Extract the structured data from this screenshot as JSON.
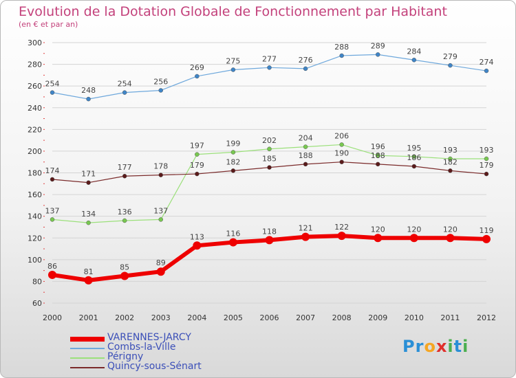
{
  "title": "Evolution de la Dotation Globale de Fonctionnement par Habitant",
  "subtitle": "(en € et par an)",
  "logo": {
    "text": "Proxiti",
    "letters": [
      "P",
      "r",
      "o",
      "x",
      "i",
      "t",
      "i"
    ],
    "colors": [
      "#2a8fd6",
      "#2a8fd6",
      "#f5a623",
      "#e0302c",
      "#4caf50",
      "#2a8fd6",
      "#4caf50"
    ]
  },
  "chart_data": {
    "type": "line",
    "title": "Evolution de la Dotation Globale de Fonctionnement par Habitant",
    "subtitle": "(en € et par an)",
    "xlabel": "",
    "ylabel": "",
    "x": [
      "2000",
      "2001",
      "2002",
      "2003",
      "2004",
      "2005",
      "2006",
      "2007",
      "2008",
      "2009",
      "2010",
      "2011",
      "2012"
    ],
    "ylim": [
      60,
      300
    ],
    "yticks": [
      60,
      80,
      100,
      120,
      140,
      160,
      180,
      200,
      220,
      240,
      260,
      280,
      300
    ],
    "grid": "horizontal",
    "legend_position": "bottom-left",
    "series": [
      {
        "name": "VARENNES-JARCY",
        "color": "#ee0000",
        "marker_color": "#ee0000",
        "emphasis": "thick",
        "values": [
          86,
          81,
          85,
          89,
          113,
          116,
          118,
          121,
          122,
          120,
          120,
          120,
          119
        ]
      },
      {
        "name": "Combs-la-Ville",
        "color": "#6ea8dc",
        "marker_color": "#3f85c7",
        "emphasis": "normal",
        "values": [
          254,
          248,
          254,
          256,
          269,
          275,
          277,
          276,
          288,
          289,
          284,
          279,
          274
        ]
      },
      {
        "name": "Périgny",
        "color": "#9be07a",
        "marker_color": "#78c850",
        "emphasis": "normal",
        "values": [
          137,
          134,
          136,
          137,
          197,
          199,
          202,
          204,
          206,
          196,
          195,
          193,
          193
        ]
      },
      {
        "name": "Quincy-sous-Sénart",
        "color": "#7a2a2a",
        "marker_color": "#5a1a1a",
        "emphasis": "normal",
        "values": [
          174,
          171,
          177,
          178,
          179,
          182,
          185,
          188,
          190,
          188,
          186,
          182,
          179
        ]
      }
    ]
  }
}
